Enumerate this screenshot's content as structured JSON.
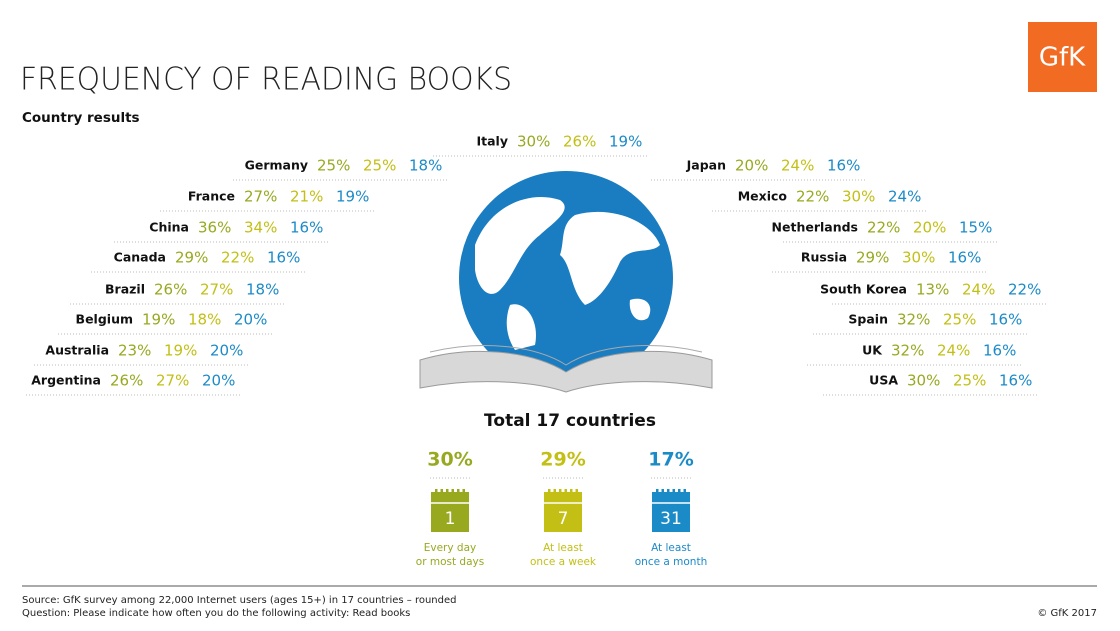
{
  "header": {
    "title": "FREQUENCY OF READING BOOKS",
    "subtitle": "Country results",
    "logo": "GfK"
  },
  "center_country": {
    "name": "Italy",
    "values": [
      "30%",
      "26%",
      "19%"
    ]
  },
  "left_countries": [
    {
      "name": "Germany",
      "values": [
        "25%",
        "25%",
        "18%"
      ]
    },
    {
      "name": "France",
      "values": [
        "27%",
        "21%",
        "19%"
      ]
    },
    {
      "name": "China",
      "values": [
        "36%",
        "34%",
        "16%"
      ]
    },
    {
      "name": "Canada",
      "values": [
        "29%",
        "22%",
        "16%"
      ]
    },
    {
      "name": "Brazil",
      "values": [
        "26%",
        "27%",
        "18%"
      ]
    },
    {
      "name": "Belgium",
      "values": [
        "19%",
        "18%",
        "20%"
      ]
    },
    {
      "name": "Australia",
      "values": [
        "23%",
        "19%",
        "20%"
      ]
    },
    {
      "name": "Argentina",
      "values": [
        "26%",
        "27%",
        "20%"
      ]
    }
  ],
  "right_countries": [
    {
      "name": "Japan",
      "values": [
        "20%",
        "24%",
        "16%"
      ]
    },
    {
      "name": "Mexico",
      "values": [
        "22%",
        "30%",
        "24%"
      ]
    },
    {
      "name": "Netherlands",
      "values": [
        "22%",
        "20%",
        "15%"
      ]
    },
    {
      "name": "Russia",
      "values": [
        "29%",
        "30%",
        "16%"
      ]
    },
    {
      "name": "South Korea",
      "values": [
        "13%",
        "24%",
        "22%"
      ]
    },
    {
      "name": "Spain",
      "values": [
        "32%",
        "25%",
        "16%"
      ]
    },
    {
      "name": "UK",
      "values": [
        "32%",
        "24%",
        "16%"
      ]
    },
    {
      "name": "USA",
      "values": [
        "30%",
        "25%",
        "16%"
      ]
    }
  ],
  "total": {
    "title": "Total 17 countries",
    "items": [
      {
        "value": "30%",
        "day": "1",
        "label": [
          "Every day",
          "or most days"
        ]
      },
      {
        "value": "29%",
        "day": "7",
        "label": [
          "At least",
          "once a week"
        ]
      },
      {
        "value": "17%",
        "day": "31",
        "label": [
          "At least",
          "once a month"
        ]
      }
    ]
  },
  "footer": {
    "source": "Source: GfK survey among 22,000 Internet users (ages 15+) in 17 countries – rounded",
    "question": "Question: Please indicate how often you do the following activity: Read books",
    "copyright": "© GfK 2017"
  }
}
